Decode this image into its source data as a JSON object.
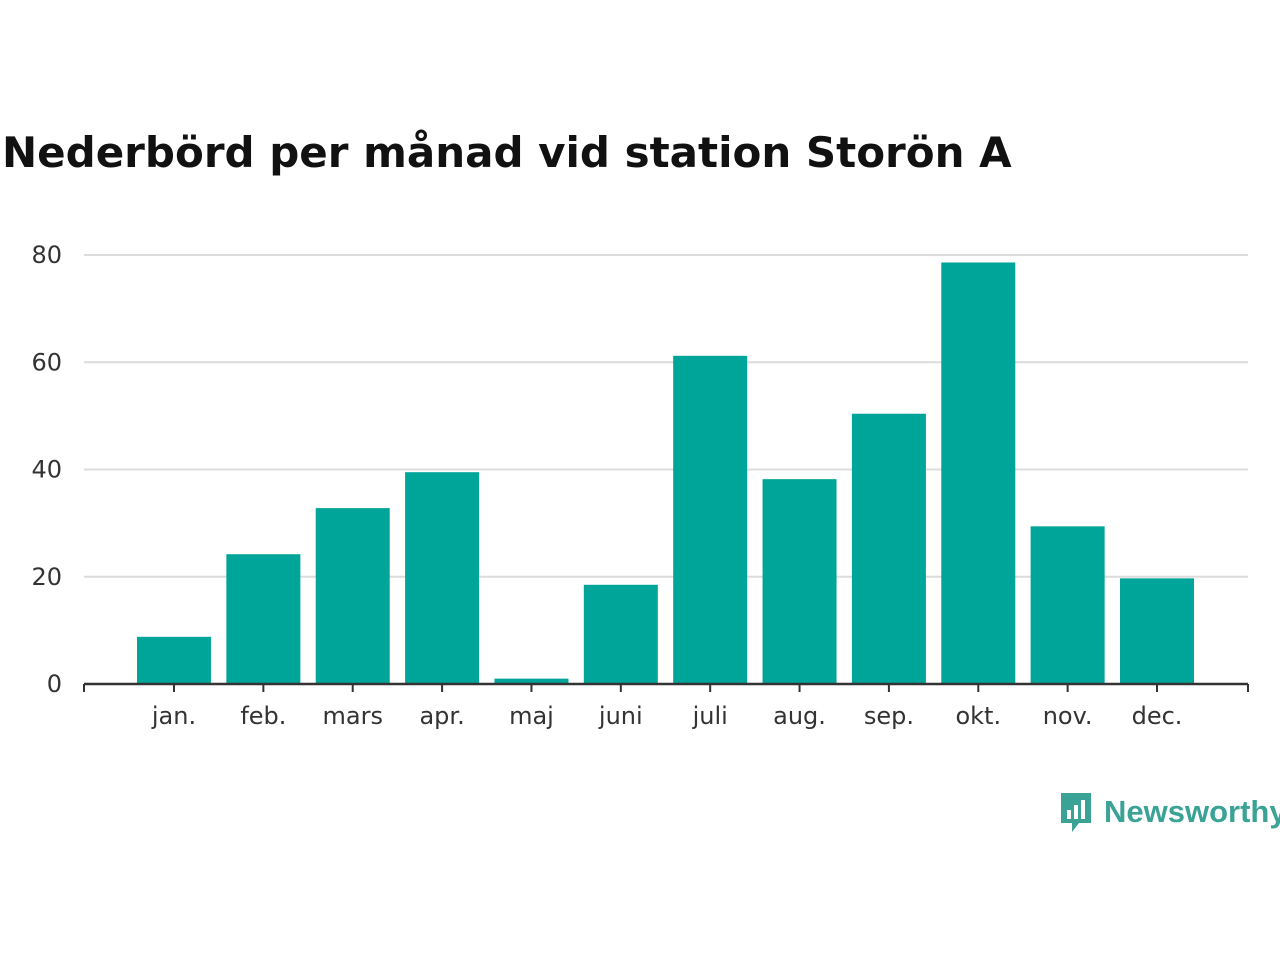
{
  "chart_data": {
    "type": "bar",
    "title": "Nederbörd per månad vid station Storön A",
    "categories": [
      "jan.",
      "feb.",
      "mars",
      "apr.",
      "maj",
      "juni",
      "juli",
      "aug.",
      "sep.",
      "okt.",
      "nov.",
      "dec."
    ],
    "values": [
      8.8,
      24.2,
      32.8,
      39.5,
      1.0,
      18.5,
      61.2,
      38.2,
      50.4,
      78.6,
      29.4,
      19.7
    ],
    "ylim": [
      0,
      80
    ],
    "yticks": [
      0,
      20,
      40,
      60,
      80
    ],
    "grid": true,
    "bar_color": "#00a59a"
  },
  "logo": {
    "text": "Newsworthy",
    "icon": "newsworthy-chart-bubble-icon",
    "color": "#3aa396"
  }
}
